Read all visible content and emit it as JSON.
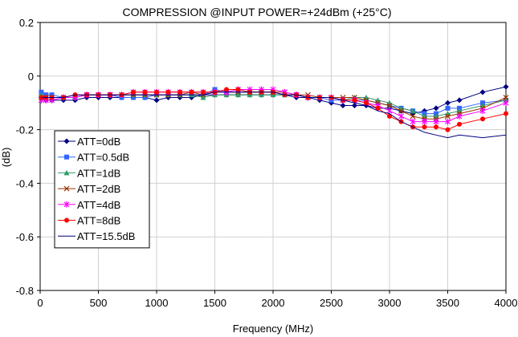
{
  "chart_data": {
    "type": "line",
    "title": "COMPRESSION @INPUT POWER=+24dBm (+25°C)",
    "xlabel": "Frequency (MHz)",
    "ylabel": "(dB)",
    "xlim": [
      0,
      4000
    ],
    "ylim": [
      -0.8,
      0.2
    ],
    "xticks": [
      0,
      500,
      1000,
      1500,
      2000,
      2500,
      3000,
      3500,
      4000
    ],
    "yticks": [
      0.2,
      0,
      -0.2,
      -0.4,
      -0.6,
      -0.8
    ],
    "xtick_labels": [
      "0",
      "500",
      "1000",
      "1500",
      "2000",
      "2500",
      "3000",
      "3500",
      "4000"
    ],
    "ytick_labels": [
      "0.2",
      "0",
      "-0.2",
      "-0.4",
      "-0.6",
      "-0.8"
    ],
    "grid": true,
    "legend_position": "lower-left",
    "x": [
      10,
      50,
      100,
      200,
      300,
      400,
      500,
      600,
      700,
      800,
      900,
      1000,
      1100,
      1200,
      1300,
      1400,
      1500,
      1600,
      1700,
      1800,
      1900,
      2000,
      2100,
      2200,
      2300,
      2400,
      2500,
      2600,
      2700,
      2800,
      2900,
      3000,
      3100,
      3200,
      3300,
      3400,
      3500,
      3600,
      3800,
      4000
    ],
    "series": [
      {
        "name": "ATT=0dB",
        "color": "#000080",
        "marker": "diamond",
        "values": [
          -0.08,
          -0.09,
          -0.09,
          -0.09,
          -0.09,
          -0.08,
          -0.08,
          -0.08,
          -0.08,
          -0.08,
          -0.08,
          -0.09,
          -0.08,
          -0.08,
          -0.08,
          -0.07,
          -0.07,
          -0.07,
          -0.07,
          -0.07,
          -0.07,
          -0.07,
          -0.07,
          -0.08,
          -0.08,
          -0.09,
          -0.1,
          -0.11,
          -0.11,
          -0.11,
          -0.12,
          -0.12,
          -0.13,
          -0.14,
          -0.13,
          -0.12,
          -0.1,
          -0.09,
          -0.06,
          -0.04
        ]
      },
      {
        "name": "ATT=0.5dB",
        "color": "#3366FF",
        "marker": "square",
        "values": [
          -0.06,
          -0.07,
          -0.07,
          -0.08,
          -0.08,
          -0.07,
          -0.07,
          -0.07,
          -0.08,
          -0.08,
          -0.08,
          -0.07,
          -0.07,
          -0.07,
          -0.07,
          -0.07,
          -0.05,
          -0.06,
          -0.06,
          -0.06,
          -0.06,
          -0.06,
          -0.07,
          -0.07,
          -0.08,
          -0.08,
          -0.09,
          -0.09,
          -0.09,
          -0.09,
          -0.1,
          -0.11,
          -0.12,
          -0.13,
          -0.14,
          -0.14,
          -0.12,
          -0.12,
          -0.1,
          -0.09
        ]
      },
      {
        "name": "ATT=1dB",
        "color": "#339966",
        "marker": "triangle",
        "values": [
          -0.07,
          -0.08,
          -0.08,
          -0.08,
          -0.08,
          -0.07,
          -0.07,
          -0.07,
          -0.07,
          -0.07,
          -0.07,
          -0.07,
          -0.07,
          -0.07,
          -0.07,
          -0.08,
          -0.07,
          -0.07,
          -0.07,
          -0.07,
          -0.07,
          -0.07,
          -0.07,
          -0.07,
          -0.08,
          -0.08,
          -0.08,
          -0.09,
          -0.08,
          -0.08,
          -0.09,
          -0.1,
          -0.12,
          -0.13,
          -0.15,
          -0.15,
          -0.14,
          -0.13,
          -0.11,
          -0.09
        ]
      },
      {
        "name": "ATT=2dB",
        "color": "#993300",
        "marker": "x",
        "values": [
          -0.08,
          -0.08,
          -0.08,
          -0.08,
          -0.08,
          -0.07,
          -0.07,
          -0.07,
          -0.07,
          -0.07,
          -0.07,
          -0.07,
          -0.07,
          -0.07,
          -0.06,
          -0.07,
          -0.06,
          -0.06,
          -0.06,
          -0.06,
          -0.06,
          -0.06,
          -0.06,
          -0.07,
          -0.07,
          -0.08,
          -0.08,
          -0.08,
          -0.08,
          -0.09,
          -0.1,
          -0.11,
          -0.13,
          -0.15,
          -0.16,
          -0.16,
          -0.15,
          -0.14,
          -0.12,
          -0.08
        ]
      },
      {
        "name": "ATT=4dB",
        "color": "#FF00FF",
        "marker": "asterisk",
        "values": [
          -0.09,
          -0.09,
          -0.09,
          -0.08,
          -0.08,
          -0.07,
          -0.07,
          -0.07,
          -0.07,
          -0.06,
          -0.06,
          -0.06,
          -0.06,
          -0.06,
          -0.06,
          -0.06,
          -0.06,
          -0.06,
          -0.05,
          -0.05,
          -0.05,
          -0.05,
          -0.06,
          -0.07,
          -0.08,
          -0.08,
          -0.08,
          -0.09,
          -0.09,
          -0.1,
          -0.11,
          -0.13,
          -0.15,
          -0.17,
          -0.17,
          -0.17,
          -0.17,
          -0.15,
          -0.13,
          -0.1
        ]
      },
      {
        "name": "ATT=8dB",
        "color": "#FF0000",
        "marker": "circle",
        "values": [
          -0.08,
          -0.08,
          -0.08,
          -0.08,
          -0.07,
          -0.07,
          -0.07,
          -0.07,
          -0.07,
          -0.06,
          -0.06,
          -0.06,
          -0.06,
          -0.06,
          -0.06,
          -0.06,
          -0.06,
          -0.05,
          -0.05,
          -0.06,
          -0.06,
          -0.06,
          -0.07,
          -0.07,
          -0.08,
          -0.08,
          -0.08,
          -0.09,
          -0.09,
          -0.1,
          -0.12,
          -0.15,
          -0.17,
          -0.19,
          -0.19,
          -0.19,
          -0.2,
          -0.18,
          -0.16,
          -0.14
        ]
      },
      {
        "name": "ATT=15.5dB",
        "color": "#000080",
        "marker": "none",
        "values": [
          -0.08,
          -0.08,
          -0.08,
          -0.08,
          -0.07,
          -0.07,
          -0.07,
          -0.07,
          -0.07,
          -0.07,
          -0.07,
          -0.07,
          -0.07,
          -0.07,
          -0.07,
          -0.07,
          -0.06,
          -0.06,
          -0.06,
          -0.06,
          -0.06,
          -0.06,
          -0.07,
          -0.07,
          -0.08,
          -0.08,
          -0.08,
          -0.09,
          -0.1,
          -0.11,
          -0.13,
          -0.14,
          -0.17,
          -0.19,
          -0.21,
          -0.22,
          -0.23,
          -0.22,
          -0.23,
          -0.22
        ]
      }
    ]
  }
}
